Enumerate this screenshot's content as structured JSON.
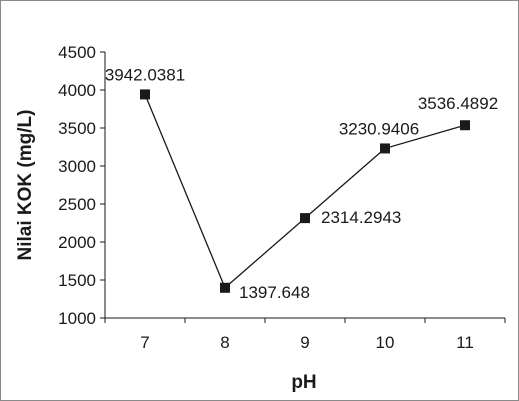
{
  "chart_data": {
    "type": "line",
    "title": "",
    "xlabel": "pH",
    "ylabel": "Nilai KOK (mg/L)",
    "categories": [
      "7",
      "8",
      "9",
      "10",
      "11"
    ],
    "x": [
      7,
      8,
      9,
      10,
      11
    ],
    "series": [
      {
        "values": [
          3942.0381,
          1397.648,
          2314.2943,
          3230.9406,
          3536.4892
        ],
        "data_labels": [
          "3942.0381",
          "1397.648",
          "2314.2943",
          "3230.9406",
          "3536.4892"
        ],
        "marker": "square",
        "color": "#1a1a1a"
      }
    ],
    "ylim": [
      1000,
      4500
    ],
    "yticks": [
      1000,
      1500,
      2000,
      2500,
      3000,
      3500,
      4000,
      4500
    ],
    "ytick_labels": [
      "1000",
      "1500",
      "2000",
      "2500",
      "3000",
      "3500",
      "4000",
      "4500"
    ],
    "grid": false,
    "legend": "none"
  }
}
